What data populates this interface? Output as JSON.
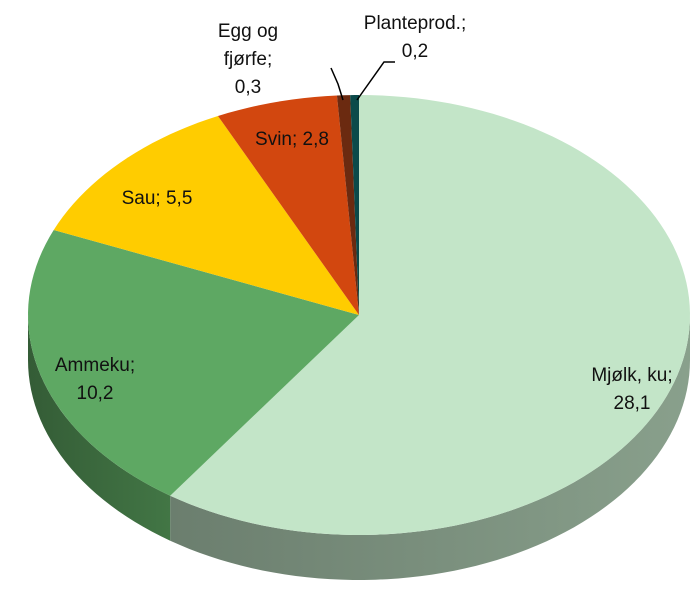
{
  "chart_data": {
    "type": "pie",
    "categories": [
      "Mjølk, ku",
      "Ammeku",
      "Sau",
      "Svin",
      "Egg og fjørfe",
      "Planteprod."
    ],
    "values": [
      28.1,
      10.2,
      5.5,
      2.8,
      0.3,
      0.2
    ],
    "value_labels": [
      "28,1",
      "10,2",
      "5,5",
      "2,8",
      "0,3",
      "0,2"
    ],
    "label_separator": ";",
    "colors": [
      "#c3e5c8",
      "#5ea863",
      "#ffcc00",
      "#d2470f",
      "#6b2a10",
      "#0b4a4a"
    ]
  }
}
